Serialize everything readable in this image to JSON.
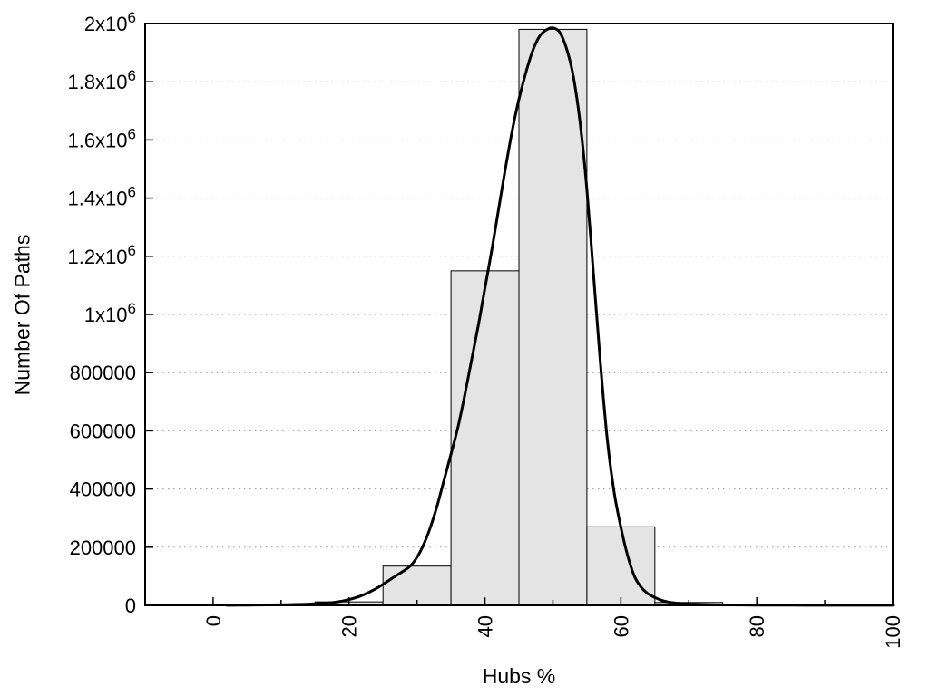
{
  "chart_data": {
    "type": "bar",
    "subtype": "histogram-with-fit-curve",
    "title": "",
    "xlabel": "Hubs %",
    "ylabel": "Number Of Paths",
    "xlim": [
      -10,
      100
    ],
    "ylim": [
      0,
      2000000
    ],
    "grid": "horizontal-dotted",
    "legend": "none",
    "x_major_ticks": [
      {
        "value": 0,
        "label": "0"
      },
      {
        "value": 20,
        "label": "20"
      },
      {
        "value": 40,
        "label": "40"
      },
      {
        "value": 60,
        "label": "60"
      },
      {
        "value": 80,
        "label": "80"
      },
      {
        "value": 100,
        "label": "100"
      }
    ],
    "x_minor_ticks": [
      10,
      30,
      50,
      70,
      90
    ],
    "x_tick_label_rotation_deg": -90,
    "y_ticks": [
      {
        "value": 0,
        "base": "0",
        "exp": ""
      },
      {
        "value": 200000,
        "base": "200000",
        "exp": ""
      },
      {
        "value": 400000,
        "base": "400000",
        "exp": ""
      },
      {
        "value": 600000,
        "base": "600000",
        "exp": ""
      },
      {
        "value": 800000,
        "base": "800000",
        "exp": ""
      },
      {
        "value": 1000000,
        "base": "1x10",
        "exp": "6"
      },
      {
        "value": 1200000,
        "base": "1.2x10",
        "exp": "6"
      },
      {
        "value": 1400000,
        "base": "1.4x10",
        "exp": "6"
      },
      {
        "value": 1600000,
        "base": "1.6x10",
        "exp": "6"
      },
      {
        "value": 1800000,
        "base": "1.8x10",
        "exp": "6"
      },
      {
        "value": 2000000,
        "base": "2x10",
        "exp": "6"
      }
    ],
    "grid_y_values": [
      200000,
      400000,
      600000,
      800000,
      1000000,
      1200000,
      1400000,
      1600000,
      1800000
    ],
    "bars": [
      {
        "x0": 5,
        "x1": 15,
        "count": 2000
      },
      {
        "x0": 15,
        "x1": 25,
        "count": 12000
      },
      {
        "x0": 25,
        "x1": 35,
        "count": 135000
      },
      {
        "x0": 35,
        "x1": 45,
        "count": 1150000
      },
      {
        "x0": 45,
        "x1": 55,
        "count": 1980000
      },
      {
        "x0": 55,
        "x1": 65,
        "count": 270000
      },
      {
        "x0": 65,
        "x1": 75,
        "count": 10000
      }
    ],
    "curve": {
      "name": "fit-curve",
      "peak_x": 50,
      "peak_value": 1985000,
      "points": [
        [
          2,
          300
        ],
        [
          5,
          800
        ],
        [
          8,
          1500
        ],
        [
          10,
          2000
        ],
        [
          12,
          3000
        ],
        [
          14,
          4500
        ],
        [
          16,
          7000
        ],
        [
          18,
          11000
        ],
        [
          20,
          20000
        ],
        [
          22,
          35000
        ],
        [
          24,
          58000
        ],
        [
          26,
          88000
        ],
        [
          28,
          118000
        ],
        [
          29,
          135000
        ],
        [
          30,
          165000
        ],
        [
          31,
          210000
        ],
        [
          32,
          270000
        ],
        [
          33,
          345000
        ],
        [
          34,
          432000
        ],
        [
          35,
          520000
        ],
        [
          36,
          610000
        ],
        [
          37,
          720000
        ],
        [
          38,
          840000
        ],
        [
          39,
          960000
        ],
        [
          40,
          1090000
        ],
        [
          41,
          1220000
        ],
        [
          42,
          1360000
        ],
        [
          43,
          1500000
        ],
        [
          44,
          1630000
        ],
        [
          45,
          1740000
        ],
        [
          46,
          1830000
        ],
        [
          47,
          1905000
        ],
        [
          48,
          1955000
        ],
        [
          49,
          1978000
        ],
        [
          50,
          1985000
        ],
        [
          51,
          1970000
        ],
        [
          52,
          1915000
        ],
        [
          53,
          1820000
        ],
        [
          54,
          1660000
        ],
        [
          55,
          1430000
        ],
        [
          56,
          1130000
        ],
        [
          57,
          830000
        ],
        [
          58,
          570000
        ],
        [
          59,
          390000
        ],
        [
          60,
          268000
        ],
        [
          61,
          170000
        ],
        [
          62,
          100000
        ],
        [
          63,
          62000
        ],
        [
          64,
          40000
        ],
        [
          65,
          27000
        ],
        [
          66,
          17500
        ],
        [
          67,
          11500
        ],
        [
          68,
          8000
        ],
        [
          70,
          4500
        ],
        [
          72,
          2800
        ],
        [
          75,
          1600
        ],
        [
          80,
          800
        ],
        [
          85,
          500
        ],
        [
          90,
          350
        ],
        [
          95,
          250
        ],
        [
          100,
          200
        ]
      ]
    },
    "colors": {
      "background": "#ffffff",
      "bar_fill": "#e4e4e4",
      "bar_stroke": "#000000",
      "curve": "#000000",
      "grid": "#999999",
      "frame": "#000000",
      "text": "#000000"
    }
  }
}
